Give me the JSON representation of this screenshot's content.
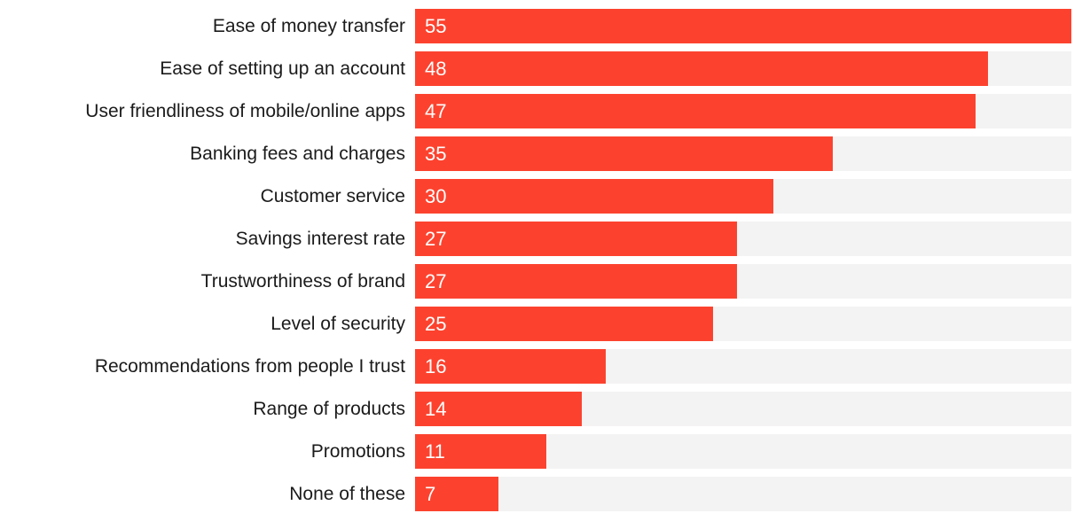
{
  "chart_data": {
    "type": "bar",
    "orientation": "horizontal",
    "title": "",
    "xlabel": "",
    "ylabel": "",
    "xlim": [
      0,
      55
    ],
    "grid": false,
    "legend": false,
    "value_labels_shown": true,
    "categories": [
      "Ease of money transfer",
      "Ease of setting up an account",
      "User friendliness of mobile/online apps",
      "Banking fees and charges",
      "Customer service",
      "Savings interest rate",
      "Trustworthiness of brand",
      "Level of security",
      "Recommendations from people I trust",
      "Range of products",
      "Promotions",
      "None of these"
    ],
    "values": [
      55,
      48,
      47,
      35,
      30,
      27,
      27,
      25,
      16,
      14,
      11,
      7
    ],
    "colors": {
      "bar": "#fc422e",
      "track": "#f4f3f3",
      "label_text": "#1b1b1b",
      "value_text": "#ffffff",
      "background": "#ffffff"
    }
  }
}
